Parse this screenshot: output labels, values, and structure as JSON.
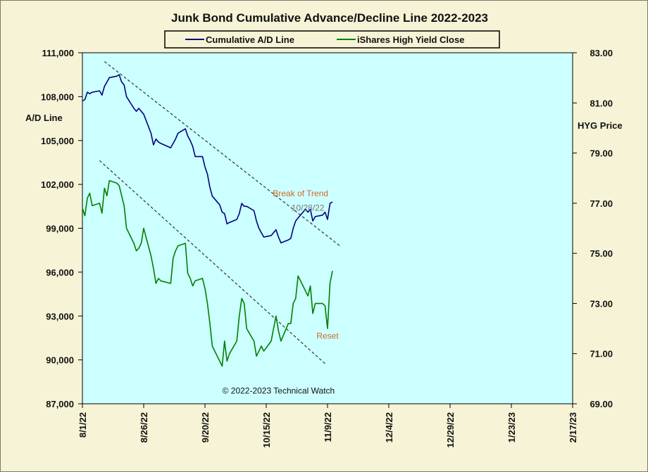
{
  "chart_data": {
    "type": "line",
    "title": "Junk Bond Cumulative  Advance/Decline  Line 2022-2023",
    "y_left_label": "A/D Line",
    "y_right_label": "HYG Price",
    "y_left_range": [
      87000,
      111000
    ],
    "y_right_range": [
      69.0,
      83.0
    ],
    "y_left_ticks": [
      "111,000",
      "108,000",
      "105,000",
      "102,000",
      "99,000",
      "96,000",
      "93,000",
      "90,000",
      "87,000"
    ],
    "y_right_ticks": [
      "83.00",
      "81.00",
      "79.00",
      "77.00",
      "75.00",
      "73.00",
      "71.00",
      "69.00"
    ],
    "x_ticks": [
      "8/1/22",
      "8/26/22",
      "9/20/22",
      "10/15/22",
      "11/9/22",
      "12/4/22",
      "12/29/22",
      "1/23/23",
      "2/17/23"
    ],
    "x_range": [
      "2022-08-01",
      "2023-02-17"
    ],
    "legend": {
      "placement": "top-center",
      "entries": [
        "Cumulative A/D Line",
        "iShares High Yield Close"
      ]
    },
    "series": [
      {
        "name": "Cumulative A/D Line",
        "axis": "left",
        "color": "#000080",
        "points": [
          [
            "2022-08-01",
            107700
          ],
          [
            "2022-08-02",
            107800
          ],
          [
            "2022-08-03",
            108300
          ],
          [
            "2022-08-04",
            108200
          ],
          [
            "2022-08-05",
            108300
          ],
          [
            "2022-08-08",
            108400
          ],
          [
            "2022-08-09",
            108100
          ],
          [
            "2022-08-10",
            108700
          ],
          [
            "2022-08-11",
            109000
          ],
          [
            "2022-08-12",
            109300
          ],
          [
            "2022-08-15",
            109400
          ],
          [
            "2022-08-16",
            109500
          ],
          [
            "2022-08-17",
            109000
          ],
          [
            "2022-08-18",
            108800
          ],
          [
            "2022-08-19",
            108000
          ],
          [
            "2022-08-22",
            107200
          ],
          [
            "2022-08-23",
            107000
          ],
          [
            "2022-08-24",
            107200
          ],
          [
            "2022-08-25",
            107000
          ],
          [
            "2022-08-26",
            106800
          ],
          [
            "2022-08-29",
            105500
          ],
          [
            "2022-08-30",
            104700
          ],
          [
            "2022-08-31",
            105100
          ],
          [
            "2022-09-01",
            104900
          ],
          [
            "2022-09-02",
            104800
          ],
          [
            "2022-09-06",
            104500
          ],
          [
            "2022-09-07",
            104800
          ],
          [
            "2022-09-08",
            105100
          ],
          [
            "2022-09-09",
            105500
          ],
          [
            "2022-09-12",
            105800
          ],
          [
            "2022-09-13",
            105300
          ],
          [
            "2022-09-14",
            105000
          ],
          [
            "2022-09-15",
            104600
          ],
          [
            "2022-09-16",
            103900
          ],
          [
            "2022-09-19",
            103900
          ],
          [
            "2022-09-20",
            103200
          ],
          [
            "2022-09-21",
            102700
          ],
          [
            "2022-09-22",
            101800
          ],
          [
            "2022-09-23",
            101200
          ],
          [
            "2022-09-26",
            100600
          ],
          [
            "2022-09-27",
            100100
          ],
          [
            "2022-09-28",
            100000
          ],
          [
            "2022-09-29",
            99300
          ],
          [
            "2022-09-30",
            99400
          ],
          [
            "2022-10-03",
            99600
          ],
          [
            "2022-10-04",
            100000
          ],
          [
            "2022-10-05",
            100700
          ],
          [
            "2022-10-06",
            100500
          ],
          [
            "2022-10-07",
            100500
          ],
          [
            "2022-10-10",
            100200
          ],
          [
            "2022-10-11",
            99500
          ],
          [
            "2022-10-12",
            99000
          ],
          [
            "2022-10-13",
            98700
          ],
          [
            "2022-10-14",
            98400
          ],
          [
            "2022-10-17",
            98500
          ],
          [
            "2022-10-18",
            98700
          ],
          [
            "2022-10-19",
            98900
          ],
          [
            "2022-10-20",
            98400
          ],
          [
            "2022-10-21",
            98000
          ],
          [
            "2022-10-24",
            98200
          ],
          [
            "2022-10-25",
            98300
          ],
          [
            "2022-10-26",
            99000
          ],
          [
            "2022-10-27",
            99500
          ],
          [
            "2022-10-28",
            99700
          ],
          [
            "2022-10-31",
            100300
          ],
          [
            "2022-11-01",
            100100
          ],
          [
            "2022-11-02",
            100300
          ],
          [
            "2022-11-03",
            99500
          ],
          [
            "2022-11-04",
            99800
          ],
          [
            "2022-11-07",
            99900
          ],
          [
            "2022-11-08",
            100100
          ],
          [
            "2022-11-09",
            99600
          ],
          [
            "2022-11-10",
            100700
          ],
          [
            "2022-11-11",
            100800
          ]
        ]
      },
      {
        "name": "iShares High Yield Close",
        "axis": "right",
        "color": "#008000",
        "points": [
          [
            "2022-08-01",
            76.8
          ],
          [
            "2022-08-02",
            76.5
          ],
          [
            "2022-08-03",
            77.2
          ],
          [
            "2022-08-04",
            77.4
          ],
          [
            "2022-08-05",
            76.9
          ],
          [
            "2022-08-08",
            77.0
          ],
          [
            "2022-08-09",
            76.6
          ],
          [
            "2022-08-10",
            77.6
          ],
          [
            "2022-08-11",
            77.3
          ],
          [
            "2022-08-12",
            77.9
          ],
          [
            "2022-08-15",
            77.8
          ],
          [
            "2022-08-16",
            77.7
          ],
          [
            "2022-08-17",
            77.3
          ],
          [
            "2022-08-18",
            76.9
          ],
          [
            "2022-08-19",
            76.0
          ],
          [
            "2022-08-22",
            75.4
          ],
          [
            "2022-08-23",
            75.1
          ],
          [
            "2022-08-24",
            75.2
          ],
          [
            "2022-08-25",
            75.4
          ],
          [
            "2022-08-26",
            76.0
          ],
          [
            "2022-08-29",
            74.9
          ],
          [
            "2022-08-30",
            74.4
          ],
          [
            "2022-08-31",
            73.8
          ],
          [
            "2022-09-01",
            74.0
          ],
          [
            "2022-09-02",
            73.9
          ],
          [
            "2022-09-06",
            73.8
          ],
          [
            "2022-09-07",
            74.8
          ],
          [
            "2022-09-08",
            75.1
          ],
          [
            "2022-09-09",
            75.3
          ],
          [
            "2022-09-12",
            75.4
          ],
          [
            "2022-09-13",
            74.2
          ],
          [
            "2022-09-14",
            74.0
          ],
          [
            "2022-09-15",
            73.7
          ],
          [
            "2022-09-16",
            73.9
          ],
          [
            "2022-09-19",
            74.0
          ],
          [
            "2022-09-20",
            73.6
          ],
          [
            "2022-09-21",
            73.0
          ],
          [
            "2022-09-22",
            72.2
          ],
          [
            "2022-09-23",
            71.3
          ],
          [
            "2022-09-26",
            70.7
          ],
          [
            "2022-09-27",
            70.5
          ],
          [
            "2022-09-28",
            71.5
          ],
          [
            "2022-09-29",
            70.7
          ],
          [
            "2022-09-30",
            71.0
          ],
          [
            "2022-10-03",
            71.5
          ],
          [
            "2022-10-04",
            72.5
          ],
          [
            "2022-10-05",
            73.2
          ],
          [
            "2022-10-06",
            73.0
          ],
          [
            "2022-10-07",
            72.0
          ],
          [
            "2022-10-10",
            71.5
          ],
          [
            "2022-10-11",
            70.9
          ],
          [
            "2022-10-12",
            71.1
          ],
          [
            "2022-10-13",
            71.3
          ],
          [
            "2022-10-14",
            71.1
          ],
          [
            "2022-10-17",
            71.5
          ],
          [
            "2022-10-18",
            72.0
          ],
          [
            "2022-10-19",
            72.5
          ],
          [
            "2022-10-20",
            71.9
          ],
          [
            "2022-10-21",
            71.5
          ],
          [
            "2022-10-24",
            72.2
          ],
          [
            "2022-10-25",
            72.2
          ],
          [
            "2022-10-26",
            73.0
          ],
          [
            "2022-10-27",
            73.2
          ],
          [
            "2022-10-28",
            74.1
          ],
          [
            "2022-10-31",
            73.5
          ],
          [
            "2022-11-01",
            73.3
          ],
          [
            "2022-11-02",
            73.7
          ],
          [
            "2022-11-03",
            72.6
          ],
          [
            "2022-11-04",
            73.0
          ],
          [
            "2022-11-07",
            73.0
          ],
          [
            "2022-11-08",
            72.9
          ],
          [
            "2022-11-09",
            72.0
          ],
          [
            "2022-11-10",
            73.8
          ],
          [
            "2022-11-11",
            74.3
          ]
        ]
      }
    ],
    "trendlines": [
      {
        "axis": "left",
        "from": [
          "2022-08-10",
          110400
        ],
        "to": [
          "2022-11-14",
          97800
        ]
      },
      {
        "axis": "right",
        "from": [
          "2022-08-08",
          78.7
        ],
        "to": [
          "2022-11-08",
          70.6
        ]
      }
    ],
    "annotations": [
      {
        "text": "Break of Trend",
        "style": "orange",
        "x": "2022-10-29",
        "axis": "left",
        "y": 101200
      },
      {
        "text": "10/28/22",
        "style": "gray",
        "x": "2022-11-01",
        "axis": "left",
        "y": 100200
      },
      {
        "text": "Reset",
        "style": "orange",
        "x": "2022-11-09",
        "axis": "right",
        "y": 71.6
      },
      {
        "text": "© 2022-2023  Technical Watch",
        "style": "copy",
        "x": "2022-10-20",
        "axis": "left",
        "y": 87700
      }
    ],
    "grid": false,
    "plot_background": "#ccffff",
    "page_background": "#f6f3d6"
  }
}
